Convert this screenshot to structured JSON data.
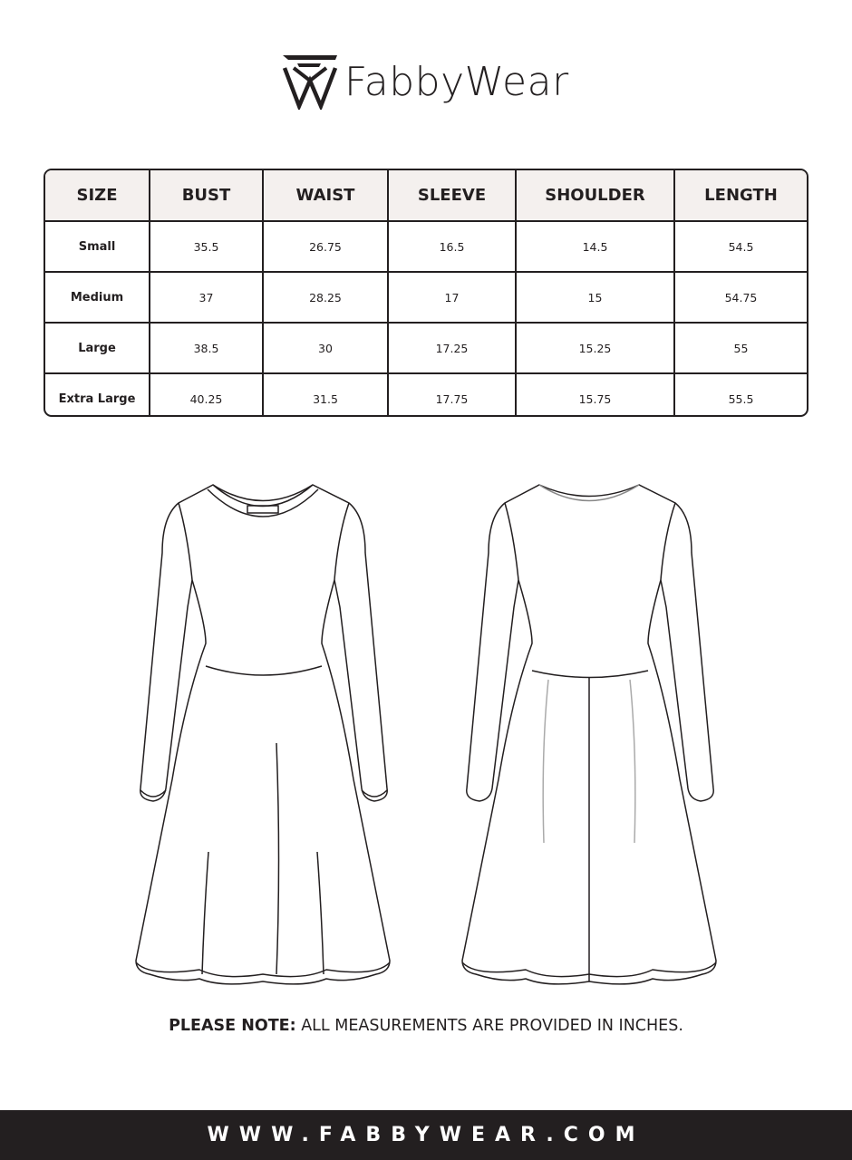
{
  "brand": {
    "name": "FabbyWear"
  },
  "table": {
    "headers": [
      "SIZE",
      "BUST",
      "WAIST",
      "SLEEVE",
      "SHOULDER",
      "LENGTH"
    ],
    "rows": [
      [
        "Small",
        "35.5",
        "26.75",
        "16.5",
        "14.5",
        "54.5"
      ],
      [
        "Medium",
        "37",
        "28.25",
        "17",
        "15",
        "54.75"
      ],
      [
        "Large",
        "38.5",
        "30",
        "17.25",
        "15.25",
        "55"
      ],
      [
        "Extra Large",
        "40.25",
        "31.5",
        "17.75",
        "15.75",
        "55.5"
      ]
    ]
  },
  "note": {
    "label": "PLEASE NOTE:",
    "text": " ALL MEASUREMENTS ARE PROVIDED IN INCHES."
  },
  "footer": {
    "url": "WWW.FABBYWEAR.COM"
  },
  "colors": {
    "ink": "#231f20",
    "header_bg": "#f4f0ee"
  }
}
